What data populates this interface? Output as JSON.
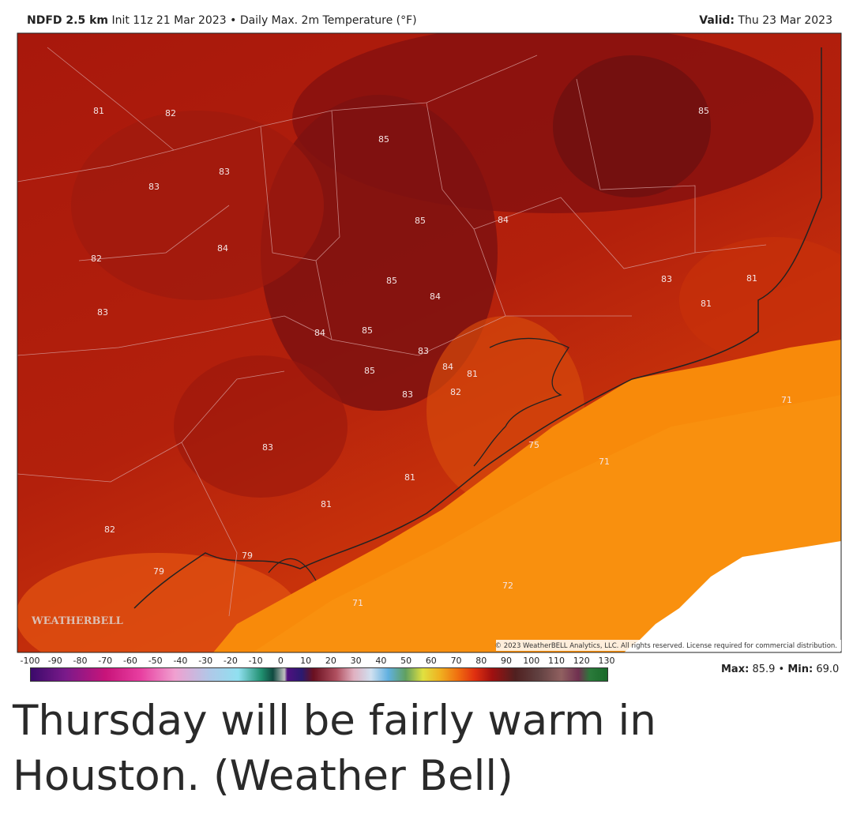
{
  "header": {
    "model": "NDFD 2.5 km",
    "init": "Init 11z 21 Mar 2023",
    "separator": "•",
    "field": "Daily Max. 2m Temperature (°F)",
    "valid_label": "Valid:",
    "valid_date": "Thu 23 Mar 2023"
  },
  "map": {
    "labels": [
      81,
      82,
      85,
      85,
      83,
      83,
      85,
      84,
      84,
      82,
      85,
      83,
      81,
      84,
      81,
      83,
      84,
      85,
      83,
      84,
      81,
      85,
      83,
      82,
      71,
      75,
      83,
      71,
      81,
      81,
      82,
      79,
      79,
      72,
      71
    ],
    "watermark": "WEATHERBELL",
    "copyright": "© 2023 WeatherBELL Analytics, LLC. All rights reserved. License required for commercial distribution."
  },
  "colorbar": {
    "ticks": [
      -100,
      -90,
      -80,
      -70,
      -60,
      -50,
      -40,
      -30,
      -20,
      -10,
      0,
      10,
      20,
      30,
      40,
      50,
      60,
      70,
      80,
      90,
      100,
      110,
      120,
      130
    ]
  },
  "stats": {
    "max_label": "Max:",
    "max_value": "85.9",
    "separator": "•",
    "min_label": "Min:",
    "min_value": "69.0"
  },
  "caption": "Thursday will be fairly warm in Houston. (Weather Bell)"
}
